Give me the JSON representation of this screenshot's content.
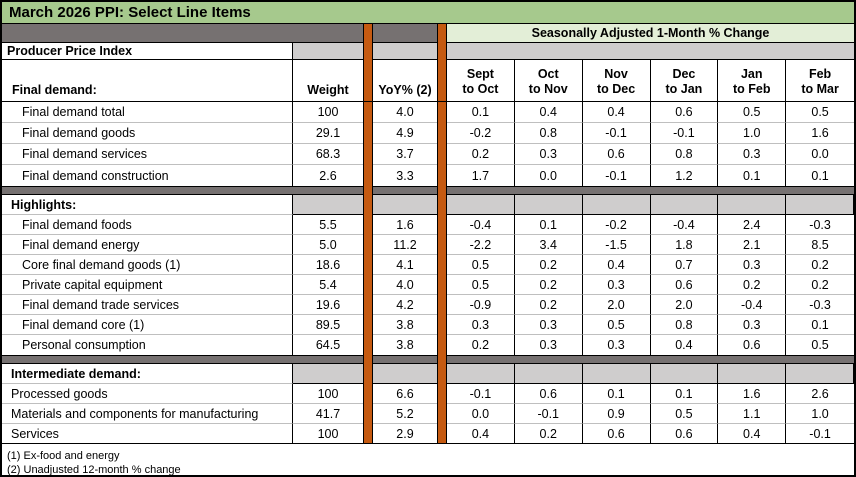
{
  "title": "March 2026 PPI: Select Line Items",
  "labels": {
    "ppi": "Producer Price Index",
    "seasonal_header": "Seasonally Adjusted 1-Month % Change",
    "weight": "Weight",
    "yoy": "YoY% (2)"
  },
  "month_headers": [
    [
      "Sept",
      "to Oct"
    ],
    [
      "Oct",
      "to Nov"
    ],
    [
      "Nov",
      "to Dec"
    ],
    [
      "Dec",
      "to Jan"
    ],
    [
      "Jan",
      "to Feb"
    ],
    [
      "Feb",
      "to Mar"
    ]
  ],
  "footnotes": [
    "(1) Ex-food and energy",
    "(2) Unadjusted 12-month % change"
  ],
  "colors": {
    "title_green": "#A6C98D",
    "seasonal_light_green": "#E3EED7",
    "dark_gray_band": "#767171",
    "gray_cell": "#CFCDCD",
    "orange_stripe": "#C55A11",
    "row_divider_gray": "#BFBFBF"
  },
  "chart_data": {
    "type": "table",
    "title": "March 2026 PPI: Select Line Items",
    "column_group_header": "Seasonally Adjusted 1-Month % Change",
    "columns": [
      "Final demand:",
      "Weight",
      "YoY% (2)",
      "Sept to Oct",
      "Oct to Nov",
      "Nov to Dec",
      "Dec to Jan",
      "Jan to Feb",
      "Feb to Mar"
    ],
    "sections": [
      {
        "label": "Final demand:",
        "rows": [
          {
            "label": "Final demand total",
            "weight": "100",
            "yoy": "4.0",
            "monthly": [
              "0.1",
              "0.4",
              "0.4",
              "0.6",
              "0.5",
              "0.5"
            ]
          },
          {
            "label": "Final demand goods",
            "weight": "29.1",
            "yoy": "4.9",
            "monthly": [
              "-0.2",
              "0.8",
              "-0.1",
              "-0.1",
              "1.0",
              "1.6"
            ]
          },
          {
            "label": "Final demand services",
            "weight": "68.3",
            "yoy": "3.7",
            "monthly": [
              "0.2",
              "0.3",
              "0.6",
              "0.8",
              "0.3",
              "0.0"
            ]
          },
          {
            "label": "Final demand construction",
            "weight": "2.6",
            "yoy": "3.3",
            "monthly": [
              "1.7",
              "0.0",
              "-0.1",
              "1.2",
              "0.1",
              "0.1"
            ]
          }
        ]
      },
      {
        "label": "Highlights:",
        "rows": [
          {
            "label": "Final demand foods",
            "weight": "5.5",
            "yoy": "1.6",
            "monthly": [
              "-0.4",
              "0.1",
              "-0.2",
              "-0.4",
              "2.4",
              "-0.3"
            ]
          },
          {
            "label": "Final demand energy",
            "weight": "5.0",
            "yoy": "11.2",
            "monthly": [
              "-2.2",
              "3.4",
              "-1.5",
              "1.8",
              "2.1",
              "8.5"
            ]
          },
          {
            "label": "Core final demand goods (1)",
            "weight": "18.6",
            "yoy": "4.1",
            "monthly": [
              "0.5",
              "0.2",
              "0.4",
              "0.7",
              "0.3",
              "0.2"
            ]
          },
          {
            "label": "Private capital equipment",
            "weight": "5.4",
            "yoy": "4.0",
            "monthly": [
              "0.5",
              "0.2",
              "0.3",
              "0.6",
              "0.2",
              "0.2"
            ]
          },
          {
            "label": "Final demand trade services",
            "weight": "19.6",
            "yoy": "4.2",
            "monthly": [
              "-0.9",
              "0.2",
              "2.0",
              "2.0",
              "-0.4",
              "-0.3"
            ]
          },
          {
            "label": "Final demand core (1)",
            "weight": "89.5",
            "yoy": "3.8",
            "monthly": [
              "0.3",
              "0.3",
              "0.5",
              "0.8",
              "0.3",
              "0.1"
            ]
          },
          {
            "label": "Personal consumption",
            "weight": "64.5",
            "yoy": "3.8",
            "monthly": [
              "0.2",
              "0.3",
              "0.3",
              "0.4",
              "0.6",
              "0.5"
            ]
          }
        ]
      },
      {
        "label": "Intermediate demand:",
        "rows": [
          {
            "label": "Processed goods",
            "weight": "100",
            "yoy": "6.6",
            "monthly": [
              "-0.1",
              "0.6",
              "0.1",
              "0.1",
              "1.6",
              "2.6"
            ]
          },
          {
            "label": "Materials and components for manufacturing",
            "weight": "41.7",
            "yoy": "5.2",
            "monthly": [
              "0.0",
              "-0.1",
              "0.9",
              "0.5",
              "1.1",
              "1.0"
            ]
          },
          {
            "label": "Services",
            "weight": "100",
            "yoy": "2.9",
            "monthly": [
              "0.4",
              "0.2",
              "0.6",
              "0.6",
              "0.4",
              "-0.1"
            ]
          }
        ]
      }
    ]
  }
}
